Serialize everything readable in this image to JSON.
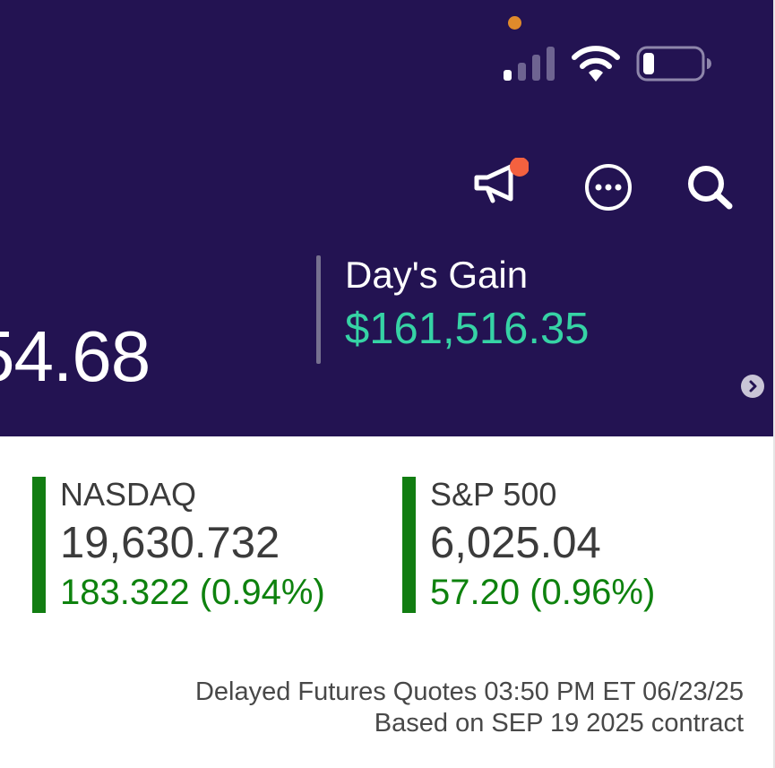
{
  "status_bar": {
    "camera_dot_color": "#e08a2b",
    "signal_icon": "cellular-signal-icon",
    "wifi_icon": "wifi-icon",
    "battery_icon": "battery-low-icon"
  },
  "toolbar": {
    "announcements_icon": "megaphone-icon",
    "more_icon": "more-dots-circle-icon",
    "search_icon": "search-icon",
    "notification_dot_color": "#f4613f"
  },
  "summary": {
    "balance_partial": "54.68",
    "days_gain_label": "Day's Gain",
    "days_gain_value": "$161,516.35"
  },
  "indices": [
    {
      "name": "NASDAQ",
      "value": "19,630.732",
      "change": "183.322 (0.94%)"
    },
    {
      "name": "S&P 500",
      "value": "6,025.04",
      "change": "57.20 (0.96%)"
    }
  ],
  "footnote": {
    "line1": "Delayed Futures Quotes 03:50 PM ET 06/23/25",
    "line2": "Based on SEP 19 2025 contract"
  },
  "colors": {
    "header_bg": "#231352",
    "gain_green": "#36d3a5",
    "index_green": "#0e820e",
    "index_bar": "#127d12"
  }
}
